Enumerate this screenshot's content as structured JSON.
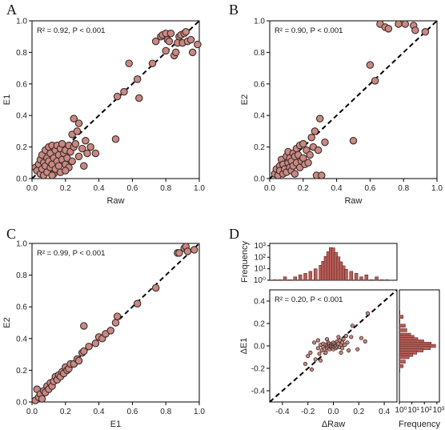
{
  "colors": {
    "marker_fill": "#c98981",
    "marker_edge": "#3a2a2a",
    "bar_fill": "#b85b55",
    "diagonal": "#000000"
  },
  "panels": [
    {
      "letter": "A",
      "annotation": "R² = 0.92, P < 0.001"
    },
    {
      "letter": "B",
      "annotation": "R² = 0.90, P < 0.001"
    },
    {
      "letter": "C",
      "annotation": "R² = 0.99, P < 0.001"
    },
    {
      "letter": "D",
      "annotation": "R² = 0.20, P < 0.001"
    }
  ],
  "chart_data": [
    {
      "type": "scatter",
      "panel": "A",
      "xlabel": "Raw",
      "ylabel": "E1",
      "xlim": [
        0,
        1
      ],
      "ylim": [
        0,
        1
      ],
      "xticks": [
        "0.0",
        "0.2",
        "0.4",
        "0.6",
        "0.8",
        "1.0"
      ],
      "yticks": [
        "0.0",
        "0.2",
        "0.4",
        "0.6",
        "0.8",
        "1.0"
      ],
      "reference_line": "y = x (dashed)",
      "points": [
        [
          0.02,
          0.07
        ],
        [
          0.03,
          0.05
        ],
        [
          0.04,
          0.09
        ],
        [
          0.05,
          0.03
        ],
        [
          0.05,
          0.12
        ],
        [
          0.06,
          0.06
        ],
        [
          0.06,
          0.15
        ],
        [
          0.07,
          0.1
        ],
        [
          0.07,
          0.02
        ],
        [
          0.08,
          0.18
        ],
        [
          0.08,
          0.08
        ],
        [
          0.09,
          0.13
        ],
        [
          0.09,
          0.04
        ],
        [
          0.1,
          0.2
        ],
        [
          0.1,
          0.11
        ],
        [
          0.11,
          0.07
        ],
        [
          0.11,
          0.16
        ],
        [
          0.12,
          0.21
        ],
        [
          0.12,
          0.09
        ],
        [
          0.13,
          0.13
        ],
        [
          0.13,
          0.03
        ],
        [
          0.14,
          0.18
        ],
        [
          0.14,
          0.06
        ],
        [
          0.15,
          0.21
        ],
        [
          0.15,
          0.11
        ],
        [
          0.16,
          0.15
        ],
        [
          0.16,
          0.08
        ],
        [
          0.17,
          0.19
        ],
        [
          0.17,
          0.04
        ],
        [
          0.18,
          0.12
        ],
        [
          0.18,
          0.22
        ],
        [
          0.19,
          0.16
        ],
        [
          0.2,
          0.09
        ],
        [
          0.2,
          0.18
        ],
        [
          0.21,
          0.13
        ],
        [
          0.22,
          0.21
        ],
        [
          0.22,
          0.07
        ],
        [
          0.23,
          0.17
        ],
        [
          0.24,
          0.28
        ],
        [
          0.24,
          0.11
        ],
        [
          0.25,
          0.38
        ],
        [
          0.25,
          0.2
        ],
        [
          0.26,
          0.22
        ],
        [
          0.27,
          0.3
        ],
        [
          0.28,
          0.14
        ],
        [
          0.28,
          0.35
        ],
        [
          0.3,
          0.19
        ],
        [
          0.31,
          0.08
        ],
        [
          0.32,
          0.24
        ],
        [
          0.33,
          0.16
        ],
        [
          0.35,
          0.2
        ],
        [
          0.38,
          0.16
        ],
        [
          0.12,
          0.02
        ],
        [
          0.2,
          0.05
        ],
        [
          0.5,
          0.25
        ],
        [
          0.51,
          0.52
        ],
        [
          0.55,
          0.55
        ],
        [
          0.58,
          0.73
        ],
        [
          0.63,
          0.63
        ],
        [
          0.64,
          0.51
        ],
        [
          0.72,
          0.73
        ],
        [
          0.74,
          0.87
        ],
        [
          0.77,
          0.9
        ],
        [
          0.78,
          0.91
        ],
        [
          0.8,
          0.92
        ],
        [
          0.8,
          0.81
        ],
        [
          0.81,
          0.88
        ],
        [
          0.82,
          0.87
        ],
        [
          0.83,
          0.92
        ],
        [
          0.85,
          0.78
        ],
        [
          0.86,
          0.8
        ],
        [
          0.87,
          0.86
        ],
        [
          0.88,
          0.9
        ],
        [
          0.89,
          0.91
        ],
        [
          0.9,
          0.86
        ],
        [
          0.91,
          0.92
        ],
        [
          0.92,
          0.93
        ],
        [
          0.93,
          0.87
        ],
        [
          0.95,
          0.88
        ],
        [
          0.96,
          0.8
        ],
        [
          0.99,
          0.85
        ]
      ]
    },
    {
      "type": "scatter",
      "panel": "B",
      "xlabel": "Raw",
      "ylabel": "E2",
      "xlim": [
        0,
        1
      ],
      "ylim": [
        0,
        1
      ],
      "xticks": [
        "0.0",
        "0.2",
        "0.4",
        "0.6",
        "0.8",
        "1.0"
      ],
      "yticks": [
        "0.0",
        "0.2",
        "0.4",
        "0.6",
        "0.8",
        "1.0"
      ],
      "reference_line": "y = x (dashed)",
      "points": [
        [
          0.03,
          0.03
        ],
        [
          0.04,
          0.06
        ],
        [
          0.05,
          0.02
        ],
        [
          0.06,
          0.08
        ],
        [
          0.06,
          0.05
        ],
        [
          0.07,
          0.12
        ],
        [
          0.08,
          0.03
        ],
        [
          0.08,
          0.09
        ],
        [
          0.09,
          0.06
        ],
        [
          0.1,
          0.14
        ],
        [
          0.1,
          0.04
        ],
        [
          0.11,
          0.1
        ],
        [
          0.11,
          0.17
        ],
        [
          0.12,
          0.07
        ],
        [
          0.12,
          0.13
        ],
        [
          0.13,
          0.05
        ],
        [
          0.13,
          0.11
        ],
        [
          0.14,
          0.16
        ],
        [
          0.14,
          0.08
        ],
        [
          0.15,
          0.14
        ],
        [
          0.15,
          0.03
        ],
        [
          0.16,
          0.19
        ],
        [
          0.16,
          0.1
        ],
        [
          0.17,
          0.15
        ],
        [
          0.18,
          0.07
        ],
        [
          0.18,
          0.21
        ],
        [
          0.19,
          0.11
        ],
        [
          0.2,
          0.22
        ],
        [
          0.2,
          0.13
        ],
        [
          0.21,
          0.09
        ],
        [
          0.22,
          0.18
        ],
        [
          0.23,
          0.1
        ],
        [
          0.24,
          0.15
        ],
        [
          0.25,
          0.26
        ],
        [
          0.26,
          0.2
        ],
        [
          0.27,
          0.3
        ],
        [
          0.28,
          0.02
        ],
        [
          0.29,
          0.18
        ],
        [
          0.3,
          0.38
        ],
        [
          0.31,
          0.02
        ],
        [
          0.33,
          0.23
        ],
        [
          0.5,
          0.24
        ],
        [
          0.6,
          0.72
        ],
        [
          0.63,
          0.62
        ],
        [
          0.66,
          0.98
        ],
        [
          0.69,
          0.96
        ],
        [
          0.71,
          0.95
        ],
        [
          0.77,
          0.98
        ],
        [
          0.81,
          0.98
        ],
        [
          0.86,
          0.97
        ],
        [
          0.87,
          0.94
        ],
        [
          0.93,
          0.93
        ]
      ]
    },
    {
      "type": "scatter",
      "panel": "C",
      "xlabel": "E1",
      "ylabel": "E2",
      "xlim": [
        0,
        1
      ],
      "ylim": [
        0,
        1
      ],
      "xticks": [
        "0.0",
        "0.2",
        "0.4",
        "0.6",
        "0.8",
        "1.0"
      ],
      "yticks": [
        "0.0",
        "0.2",
        "0.4",
        "0.6",
        "0.8",
        "1.0"
      ],
      "reference_line": "y = x (dashed)",
      "points": [
        [
          0.02,
          0.01
        ],
        [
          0.03,
          0.08
        ],
        [
          0.04,
          0.03
        ],
        [
          0.05,
          0.05
        ],
        [
          0.06,
          0.02
        ],
        [
          0.07,
          0.07
        ],
        [
          0.08,
          0.06
        ],
        [
          0.09,
          0.1
        ],
        [
          0.1,
          0.08
        ],
        [
          0.11,
          0.12
        ],
        [
          0.12,
          0.1
        ],
        [
          0.13,
          0.13
        ],
        [
          0.14,
          0.16
        ],
        [
          0.15,
          0.14
        ],
        [
          0.16,
          0.17
        ],
        [
          0.17,
          0.16
        ],
        [
          0.18,
          0.19
        ],
        [
          0.19,
          0.18
        ],
        [
          0.2,
          0.22
        ],
        [
          0.21,
          0.2
        ],
        [
          0.22,
          0.21
        ],
        [
          0.23,
          0.24
        ],
        [
          0.25,
          0.24
        ],
        [
          0.27,
          0.27
        ],
        [
          0.28,
          0.26
        ],
        [
          0.3,
          0.31
        ],
        [
          0.31,
          0.32
        ],
        [
          0.31,
          0.48
        ],
        [
          0.34,
          0.35
        ],
        [
          0.38,
          0.37
        ],
        [
          0.4,
          0.41
        ],
        [
          0.42,
          0.4
        ],
        [
          0.44,
          0.43
        ],
        [
          0.47,
          0.45
        ],
        [
          0.5,
          0.5
        ],
        [
          0.51,
          0.54
        ],
        [
          0.63,
          0.62
        ],
        [
          0.74,
          0.72
        ],
        [
          0.87,
          0.94
        ],
        [
          0.88,
          0.94
        ],
        [
          0.91,
          0.97
        ],
        [
          0.92,
          0.98
        ],
        [
          0.93,
          0.95
        ],
        [
          0.97,
          0.96
        ]
      ]
    },
    {
      "type": "scatter",
      "panel": "D",
      "xlabel": "ΔRaw",
      "ylabel": "ΔE1",
      "xlim": [
        -0.5,
        0.5
      ],
      "ylim": [
        -0.5,
        0.5
      ],
      "xticks": [
        "-0.4",
        "-0.2",
        "0.0",
        "0.2",
        "0.4"
      ],
      "yticks": [
        "-0.4",
        "-0.2",
        "0.0",
        "0.2",
        "0.4"
      ],
      "reference_line": "y = x (dashed)",
      "points": [
        [
          -0.22,
          -0.16
        ],
        [
          -0.2,
          -0.09
        ],
        [
          -0.18,
          -0.06
        ],
        [
          -0.17,
          -0.21
        ],
        [
          -0.15,
          0.03
        ],
        [
          -0.14,
          -0.12
        ],
        [
          -0.12,
          -0.02
        ],
        [
          -0.11,
          -0.07
        ],
        [
          -0.1,
          -0.13
        ],
        [
          -0.1,
          0.01
        ],
        [
          -0.09,
          -0.04
        ],
        [
          -0.08,
          0.02
        ],
        [
          -0.08,
          -0.01
        ],
        [
          -0.07,
          -0.03
        ],
        [
          -0.06,
          0.01
        ],
        [
          -0.06,
          -0.06
        ],
        [
          -0.05,
          0.0
        ],
        [
          -0.05,
          -0.02
        ],
        [
          -0.04,
          0.03
        ],
        [
          -0.04,
          -0.01
        ],
        [
          -0.03,
          0.0
        ],
        [
          -0.03,
          0.02
        ],
        [
          -0.03,
          -0.03
        ],
        [
          -0.02,
          0.01
        ],
        [
          -0.02,
          -0.01
        ],
        [
          -0.02,
          0.0
        ],
        [
          -0.01,
          0.02
        ],
        [
          -0.01,
          -0.02
        ],
        [
          -0.01,
          0.0
        ],
        [
          0.0,
          0.01
        ],
        [
          0.0,
          -0.01
        ],
        [
          0.0,
          0.03
        ],
        [
          0.0,
          -0.03
        ],
        [
          0.01,
          0.0
        ],
        [
          0.01,
          0.02
        ],
        [
          0.01,
          -0.01
        ],
        [
          0.02,
          0.01
        ],
        [
          0.02,
          -0.02
        ],
        [
          0.02,
          0.0
        ],
        [
          0.03,
          0.02
        ],
        [
          0.03,
          -0.01
        ],
        [
          0.03,
          0.04
        ],
        [
          0.04,
          0.0
        ],
        [
          0.04,
          0.02
        ],
        [
          0.05,
          -0.01
        ],
        [
          0.05,
          0.05
        ],
        [
          0.06,
          0.01
        ],
        [
          0.07,
          0.03
        ],
        [
          0.07,
          -0.02
        ],
        [
          0.08,
          0.06
        ],
        [
          0.09,
          0.01
        ],
        [
          0.1,
          0.09
        ],
        [
          0.11,
          0.03
        ],
        [
          0.12,
          -0.04
        ],
        [
          0.14,
          0.08
        ],
        [
          0.15,
          0.18
        ],
        [
          0.19,
          -0.03
        ],
        [
          0.22,
          0.07
        ],
        [
          0.25,
          0.04
        ],
        [
          0.27,
          0.29
        ],
        [
          -0.05,
          0.06
        ],
        [
          0.04,
          0.08
        ],
        [
          -0.12,
          0.05
        ],
        [
          0.06,
          -0.06
        ]
      ],
      "top_histogram": {
        "ylabel": "Frequency",
        "yticks": [
          "10⁰",
          "10¹",
          "10²",
          "10³"
        ],
        "scale": "log",
        "bins": [
          -0.46,
          -0.42,
          -0.38,
          -0.34,
          -0.3,
          -0.26,
          -0.22,
          -0.18,
          -0.14,
          -0.1,
          -0.08,
          -0.06,
          -0.04,
          -0.02,
          0.0,
          0.02,
          0.04,
          0.06,
          0.08,
          0.1,
          0.14,
          0.18,
          0.22,
          0.26,
          0.3,
          0.34,
          0.38,
          0.42
        ],
        "counts": [
          1,
          1,
          2,
          1,
          2,
          3,
          4,
          6,
          10,
          20,
          45,
          120,
          300,
          700,
          650,
          260,
          110,
          40,
          18,
          9,
          6,
          4,
          2,
          3,
          1,
          2,
          1,
          1
        ]
      },
      "right_histogram": {
        "xlabel": "Frequency",
        "xticks": [
          "10⁰",
          "10¹",
          "10²",
          "10³"
        ],
        "scale": "log",
        "bins": [
          0.3,
          0.26,
          0.22,
          0.18,
          0.14,
          0.1,
          0.08,
          0.06,
          0.04,
          0.02,
          0.0,
          -0.02,
          -0.04,
          -0.06,
          -0.08,
          -0.1,
          -0.14,
          -0.18,
          -0.22
        ],
        "counts": [
          1,
          2,
          1,
          3,
          4,
          8,
          15,
          30,
          90,
          350,
          800,
          300,
          80,
          25,
          12,
          6,
          3,
          2,
          1
        ]
      }
    }
  ]
}
